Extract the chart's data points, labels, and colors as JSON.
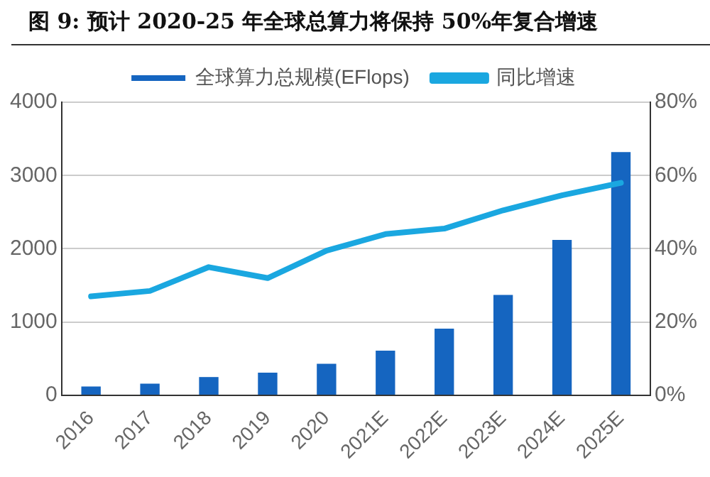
{
  "chart_data": {
    "type": "bar",
    "title": "图 9: 预计 2020-25 年全球总算力将保持 50%年复合增速",
    "categories": [
      "2016",
      "2017",
      "2018",
      "2019",
      "2020",
      "2021E",
      "2022E",
      "2023E",
      "2024E",
      "2025E"
    ],
    "series": [
      {
        "name": "全球算力总规模(EFlops)",
        "color": "#1565c0",
        "values": [
          120,
          160,
          250,
          310,
          430,
          610,
          910,
          1370,
          2120,
          3320
        ]
      },
      {
        "name": "同比增速",
        "type": "line",
        "axis": "y2",
        "color": "#1aa7e0",
        "values": [
          27,
          28.5,
          35,
          32,
          39.5,
          44,
          45.5,
          50.5,
          54.6,
          58
        ]
      }
    ],
    "ylim": [
      0,
      4000
    ],
    "yticks": [
      0,
      1000,
      2000,
      3000,
      4000
    ],
    "y2lim": [
      0,
      80
    ],
    "y2ticks": [
      {
        "value": 0,
        "label": "0%"
      },
      {
        "value": 20,
        "label": "20%"
      },
      {
        "value": 40,
        "label": "40%"
      },
      {
        "value": 60,
        "label": "60%"
      },
      {
        "value": 80,
        "label": "80%"
      }
    ],
    "grid": "y",
    "legend": "top",
    "marker": "none"
  }
}
